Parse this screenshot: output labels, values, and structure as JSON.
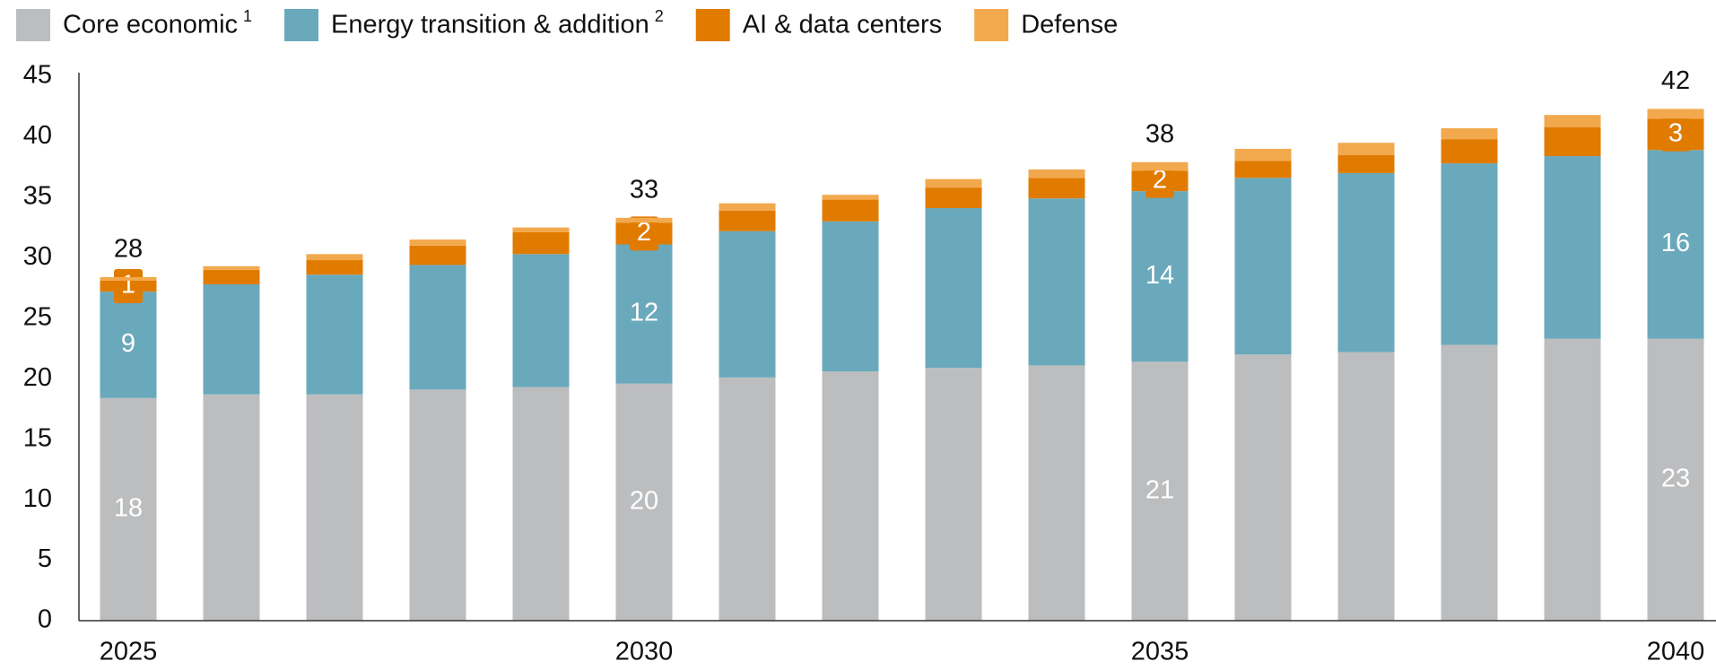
{
  "chart_data": {
    "type": "stacked_bar",
    "categories": [
      "2025",
      null,
      null,
      null,
      null,
      "2030",
      null,
      null,
      null,
      null,
      "2035",
      null,
      null,
      null,
      null,
      "2040"
    ],
    "series": [
      {
        "name": "Core economic",
        "footnote": "1",
        "color": "#bcbdbf",
        "label_color": "#ffffff",
        "values": [
          18.4,
          18.7,
          18.7,
          19.1,
          19.3,
          19.6,
          20.1,
          20.6,
          20.9,
          21.1,
          21.4,
          22.0,
          22.2,
          22.8,
          23.3,
          23.3
        ],
        "value_labels": [
          "18",
          null,
          null,
          null,
          null,
          "20",
          null,
          null,
          null,
          null,
          "21",
          null,
          null,
          null,
          null,
          "23"
        ]
      },
      {
        "name": "Energy transition & addition",
        "footnote": "2",
        "color": "#6aa9bb",
        "label_color": "#ffffff",
        "values": [
          8.8,
          9.1,
          9.9,
          10.3,
          11.0,
          11.5,
          12.1,
          12.4,
          13.2,
          13.8,
          14.1,
          14.6,
          14.8,
          15.0,
          15.1,
          15.6
        ],
        "value_labels": [
          "9",
          null,
          null,
          null,
          null,
          "12",
          null,
          null,
          null,
          null,
          "14",
          null,
          null,
          null,
          null,
          "16"
        ]
      },
      {
        "name": "AI & data centers",
        "color": "#e07b00",
        "label_color": "#ffffff",
        "values": [
          0.9,
          1.2,
          1.2,
          1.6,
          1.8,
          1.8,
          1.7,
          1.8,
          1.7,
          1.7,
          1.7,
          1.4,
          1.5,
          2.0,
          2.4,
          2.6
        ],
        "value_labels": [
          "1",
          null,
          null,
          null,
          null,
          "2",
          null,
          null,
          null,
          null,
          "2",
          null,
          null,
          null,
          null,
          "3"
        ]
      },
      {
        "name": "Defense",
        "color": "#f2a94e",
        "values": [
          0.3,
          0.3,
          0.5,
          0.5,
          0.4,
          0.4,
          0.6,
          0.4,
          0.7,
          0.7,
          0.7,
          1.0,
          1.0,
          0.9,
          1.0,
          0.8
        ]
      }
    ],
    "totals": [
      28,
      null,
      null,
      null,
      null,
      33,
      null,
      null,
      null,
      null,
      38,
      null,
      null,
      null,
      null,
      42
    ],
    "ylim": [
      0,
      45
    ],
    "yticks": [
      0,
      5,
      10,
      15,
      20,
      25,
      30,
      35,
      40,
      45
    ],
    "grid": false,
    "legend": "top"
  }
}
